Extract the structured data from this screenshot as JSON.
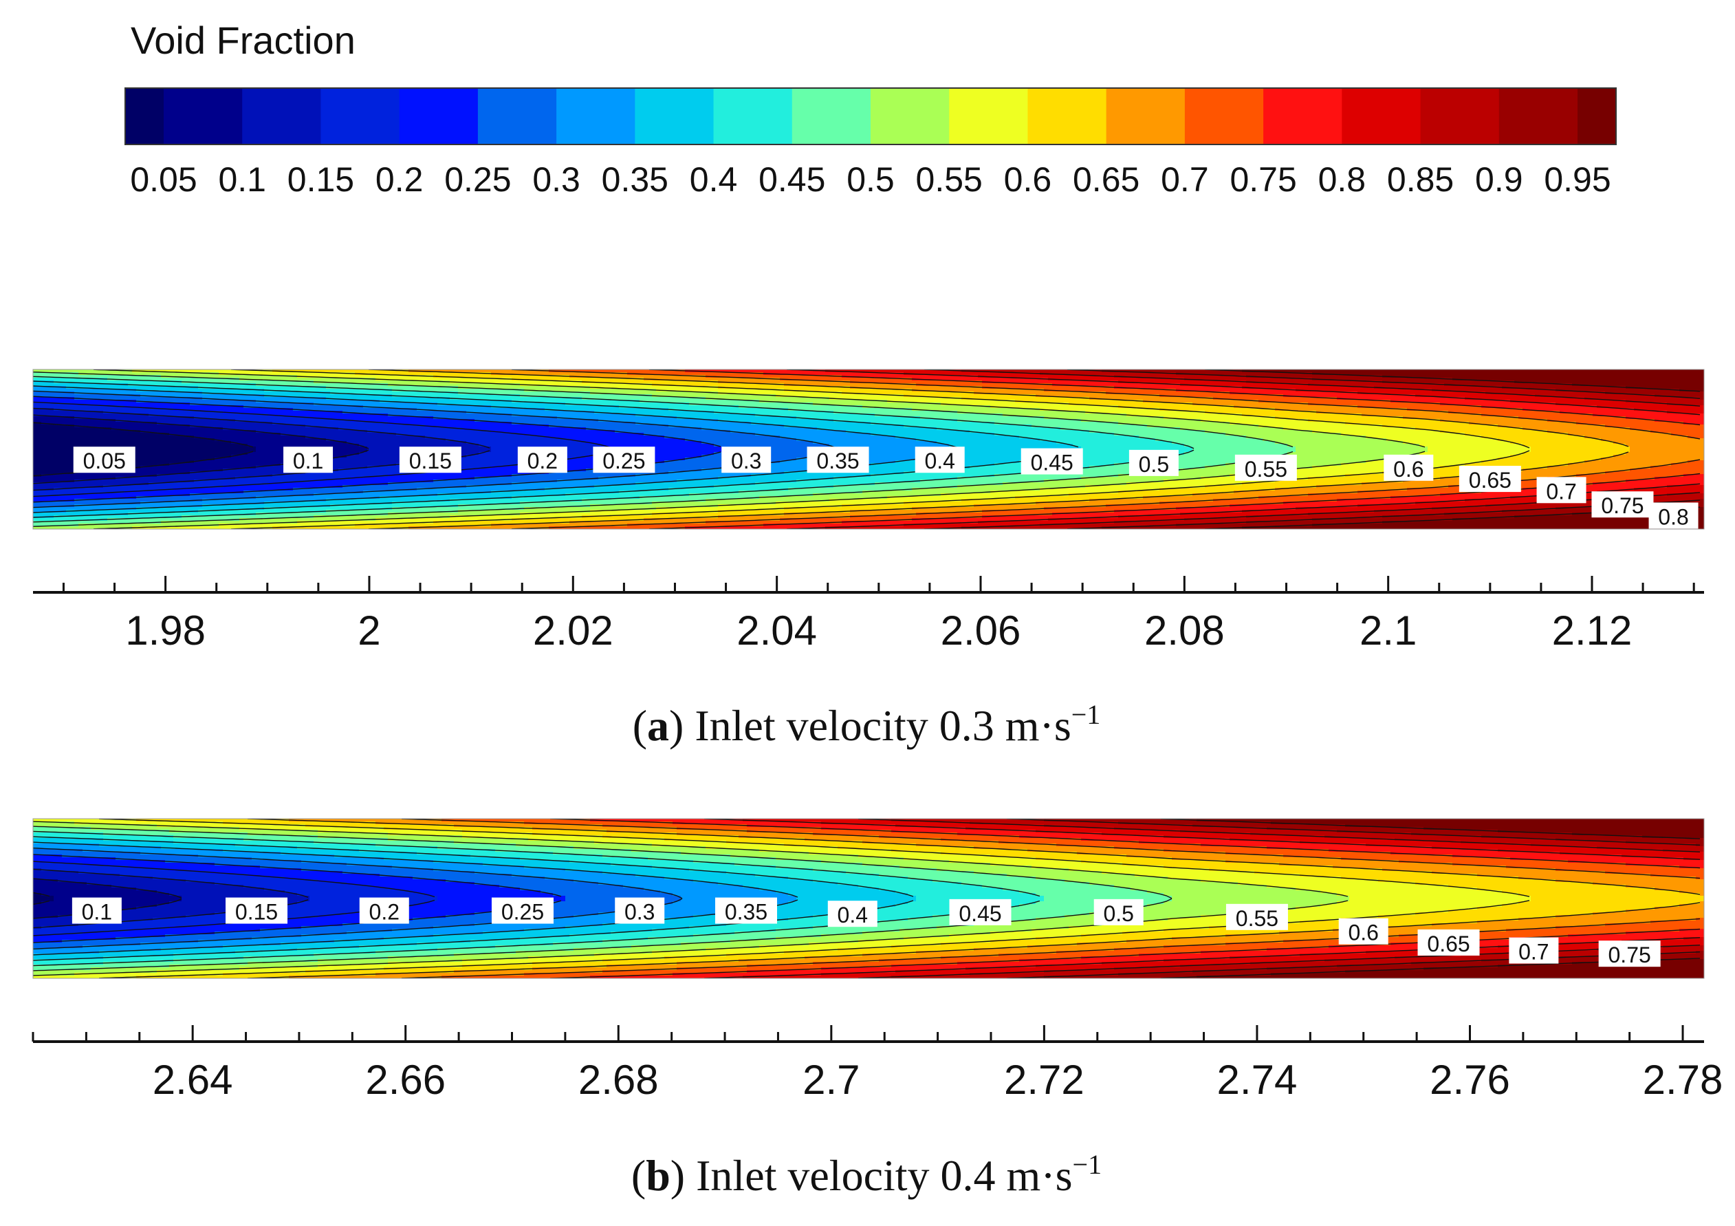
{
  "chart_data": [
    {
      "type": "heatmap",
      "panel": "colorbar",
      "title": "Void Fraction",
      "levels": [
        0.05,
        0.1,
        0.15,
        0.2,
        0.25,
        0.3,
        0.35,
        0.4,
        0.45,
        0.5,
        0.55,
        0.6,
        0.65,
        0.7,
        0.75,
        0.8,
        0.85,
        0.9,
        0.95
      ],
      "tick_labels": [
        "0.05",
        "0.1",
        "0.15",
        "0.2",
        "0.25",
        "0.3",
        "0.35",
        "0.4",
        "0.45",
        "0.5",
        "0.55",
        "0.6",
        "0.65",
        "0.7",
        "0.75",
        "0.8",
        "0.85",
        "0.9",
        "0.95"
      ],
      "colors": [
        "#000066",
        "#00008b",
        "#0011b8",
        "#0022dd",
        "#0011ff",
        "#0066ee",
        "#0099ff",
        "#00ccee",
        "#22eedd",
        "#66ffaa",
        "#aaff55",
        "#eeff22",
        "#ffdd00",
        "#ff9900",
        "#ff5500",
        "#ff1111",
        "#dd0000",
        "#bb0000",
        "#990000",
        "#770000"
      ]
    },
    {
      "type": "heatmap",
      "panel": "a",
      "caption_letter": "a",
      "caption_text": "Inlet velocity 0.3 m·s",
      "caption_sup": "−1",
      "xlim": [
        1.967,
        2.131
      ],
      "xticks": [
        "1.98",
        "2",
        "2.02",
        "2.04",
        "2.06",
        "2.08",
        "2.1",
        "2.12"
      ],
      "xtick_values": [
        1.98,
        2.0,
        2.02,
        2.04,
        2.06,
        2.08,
        2.1,
        2.12
      ],
      "min_value": 0.03,
      "max_value": 0.78,
      "contour_tips": [
        {
          "level": 0.05,
          "x": 1.989
        },
        {
          "level": 0.1,
          "x": 2.0
        },
        {
          "level": 0.15,
          "x": 2.012
        },
        {
          "level": 0.2,
          "x": 2.024
        },
        {
          "level": 0.25,
          "x": 2.035
        },
        {
          "level": 0.3,
          "x": 2.046
        },
        {
          "level": 0.35,
          "x": 2.058
        },
        {
          "level": 0.4,
          "x": 2.07
        },
        {
          "level": 0.45,
          "x": 2.081
        },
        {
          "level": 0.5,
          "x": 2.091
        },
        {
          "level": 0.55,
          "x": 2.104
        },
        {
          "level": 0.6,
          "x": 2.114
        },
        {
          "level": 0.65,
          "x": 2.124
        }
      ],
      "contour_labels": [
        {
          "text": "0.05",
          "x": 1.974,
          "row": 0.57
        },
        {
          "text": "0.1",
          "x": 1.994,
          "row": 0.57
        },
        {
          "text": "0.15",
          "x": 2.006,
          "row": 0.57
        },
        {
          "text": "0.2",
          "x": 2.017,
          "row": 0.57
        },
        {
          "text": "0.25",
          "x": 2.025,
          "row": 0.57
        },
        {
          "text": "0.3",
          "x": 2.037,
          "row": 0.57
        },
        {
          "text": "0.35",
          "x": 2.046,
          "row": 0.57
        },
        {
          "text": "0.4",
          "x": 2.056,
          "row": 0.57
        },
        {
          "text": "0.45",
          "x": 2.067,
          "row": 0.58
        },
        {
          "text": "0.5",
          "x": 2.077,
          "row": 0.59
        },
        {
          "text": "0.55",
          "x": 2.088,
          "row": 0.62
        },
        {
          "text": "0.6",
          "x": 2.102,
          "row": 0.62
        },
        {
          "text": "0.65",
          "x": 2.11,
          "row": 0.69
        },
        {
          "text": "0.7",
          "x": 2.117,
          "row": 0.76
        },
        {
          "text": "0.75",
          "x": 2.123,
          "row": 0.85
        },
        {
          "text": "0.8",
          "x": 2.128,
          "row": 0.92
        }
      ]
    },
    {
      "type": "heatmap",
      "panel": "b",
      "caption_letter": "b",
      "caption_text": "Inlet velocity 0.4 m·s",
      "caption_sup": "−1",
      "xlim": [
        2.625,
        2.782
      ],
      "xticks": [
        "2.64",
        "2.66",
        "2.68",
        "2.7",
        "2.72",
        "2.74",
        "2.76",
        "2.78"
      ],
      "xtick_values": [
        2.64,
        2.66,
        2.68,
        2.7,
        2.72,
        2.74,
        2.76,
        2.78
      ],
      "min_value": 0.08,
      "max_value": 0.78,
      "contour_tips": [
        {
          "level": 0.1,
          "x": 2.639
        },
        {
          "level": 0.15,
          "x": 2.651
        },
        {
          "level": 0.2,
          "x": 2.663
        },
        {
          "level": 0.25,
          "x": 2.675
        },
        {
          "level": 0.3,
          "x": 2.686
        },
        {
          "level": 0.35,
          "x": 2.697
        },
        {
          "level": 0.4,
          "x": 2.708
        },
        {
          "level": 0.45,
          "x": 2.72
        },
        {
          "level": 0.5,
          "x": 2.732
        },
        {
          "level": 0.55,
          "x": 2.749
        }
      ],
      "contour_labels": [
        {
          "text": "0.1",
          "x": 2.631,
          "row": 0.58
        },
        {
          "text": "0.15",
          "x": 2.646,
          "row": 0.58
        },
        {
          "text": "0.2",
          "x": 2.658,
          "row": 0.58
        },
        {
          "text": "0.25",
          "x": 2.671,
          "row": 0.58
        },
        {
          "text": "0.3",
          "x": 2.682,
          "row": 0.58
        },
        {
          "text": "0.35",
          "x": 2.692,
          "row": 0.58
        },
        {
          "text": "0.4",
          "x": 2.702,
          "row": 0.6
        },
        {
          "text": "0.45",
          "x": 2.714,
          "row": 0.59
        },
        {
          "text": "0.5",
          "x": 2.727,
          "row": 0.59
        },
        {
          "text": "0.55",
          "x": 2.74,
          "row": 0.62
        },
        {
          "text": "0.6",
          "x": 2.75,
          "row": 0.71
        },
        {
          "text": "0.65",
          "x": 2.758,
          "row": 0.78
        },
        {
          "text": "0.7",
          "x": 2.766,
          "row": 0.83
        },
        {
          "text": "0.75",
          "x": 2.775,
          "row": 0.85
        }
      ]
    }
  ]
}
